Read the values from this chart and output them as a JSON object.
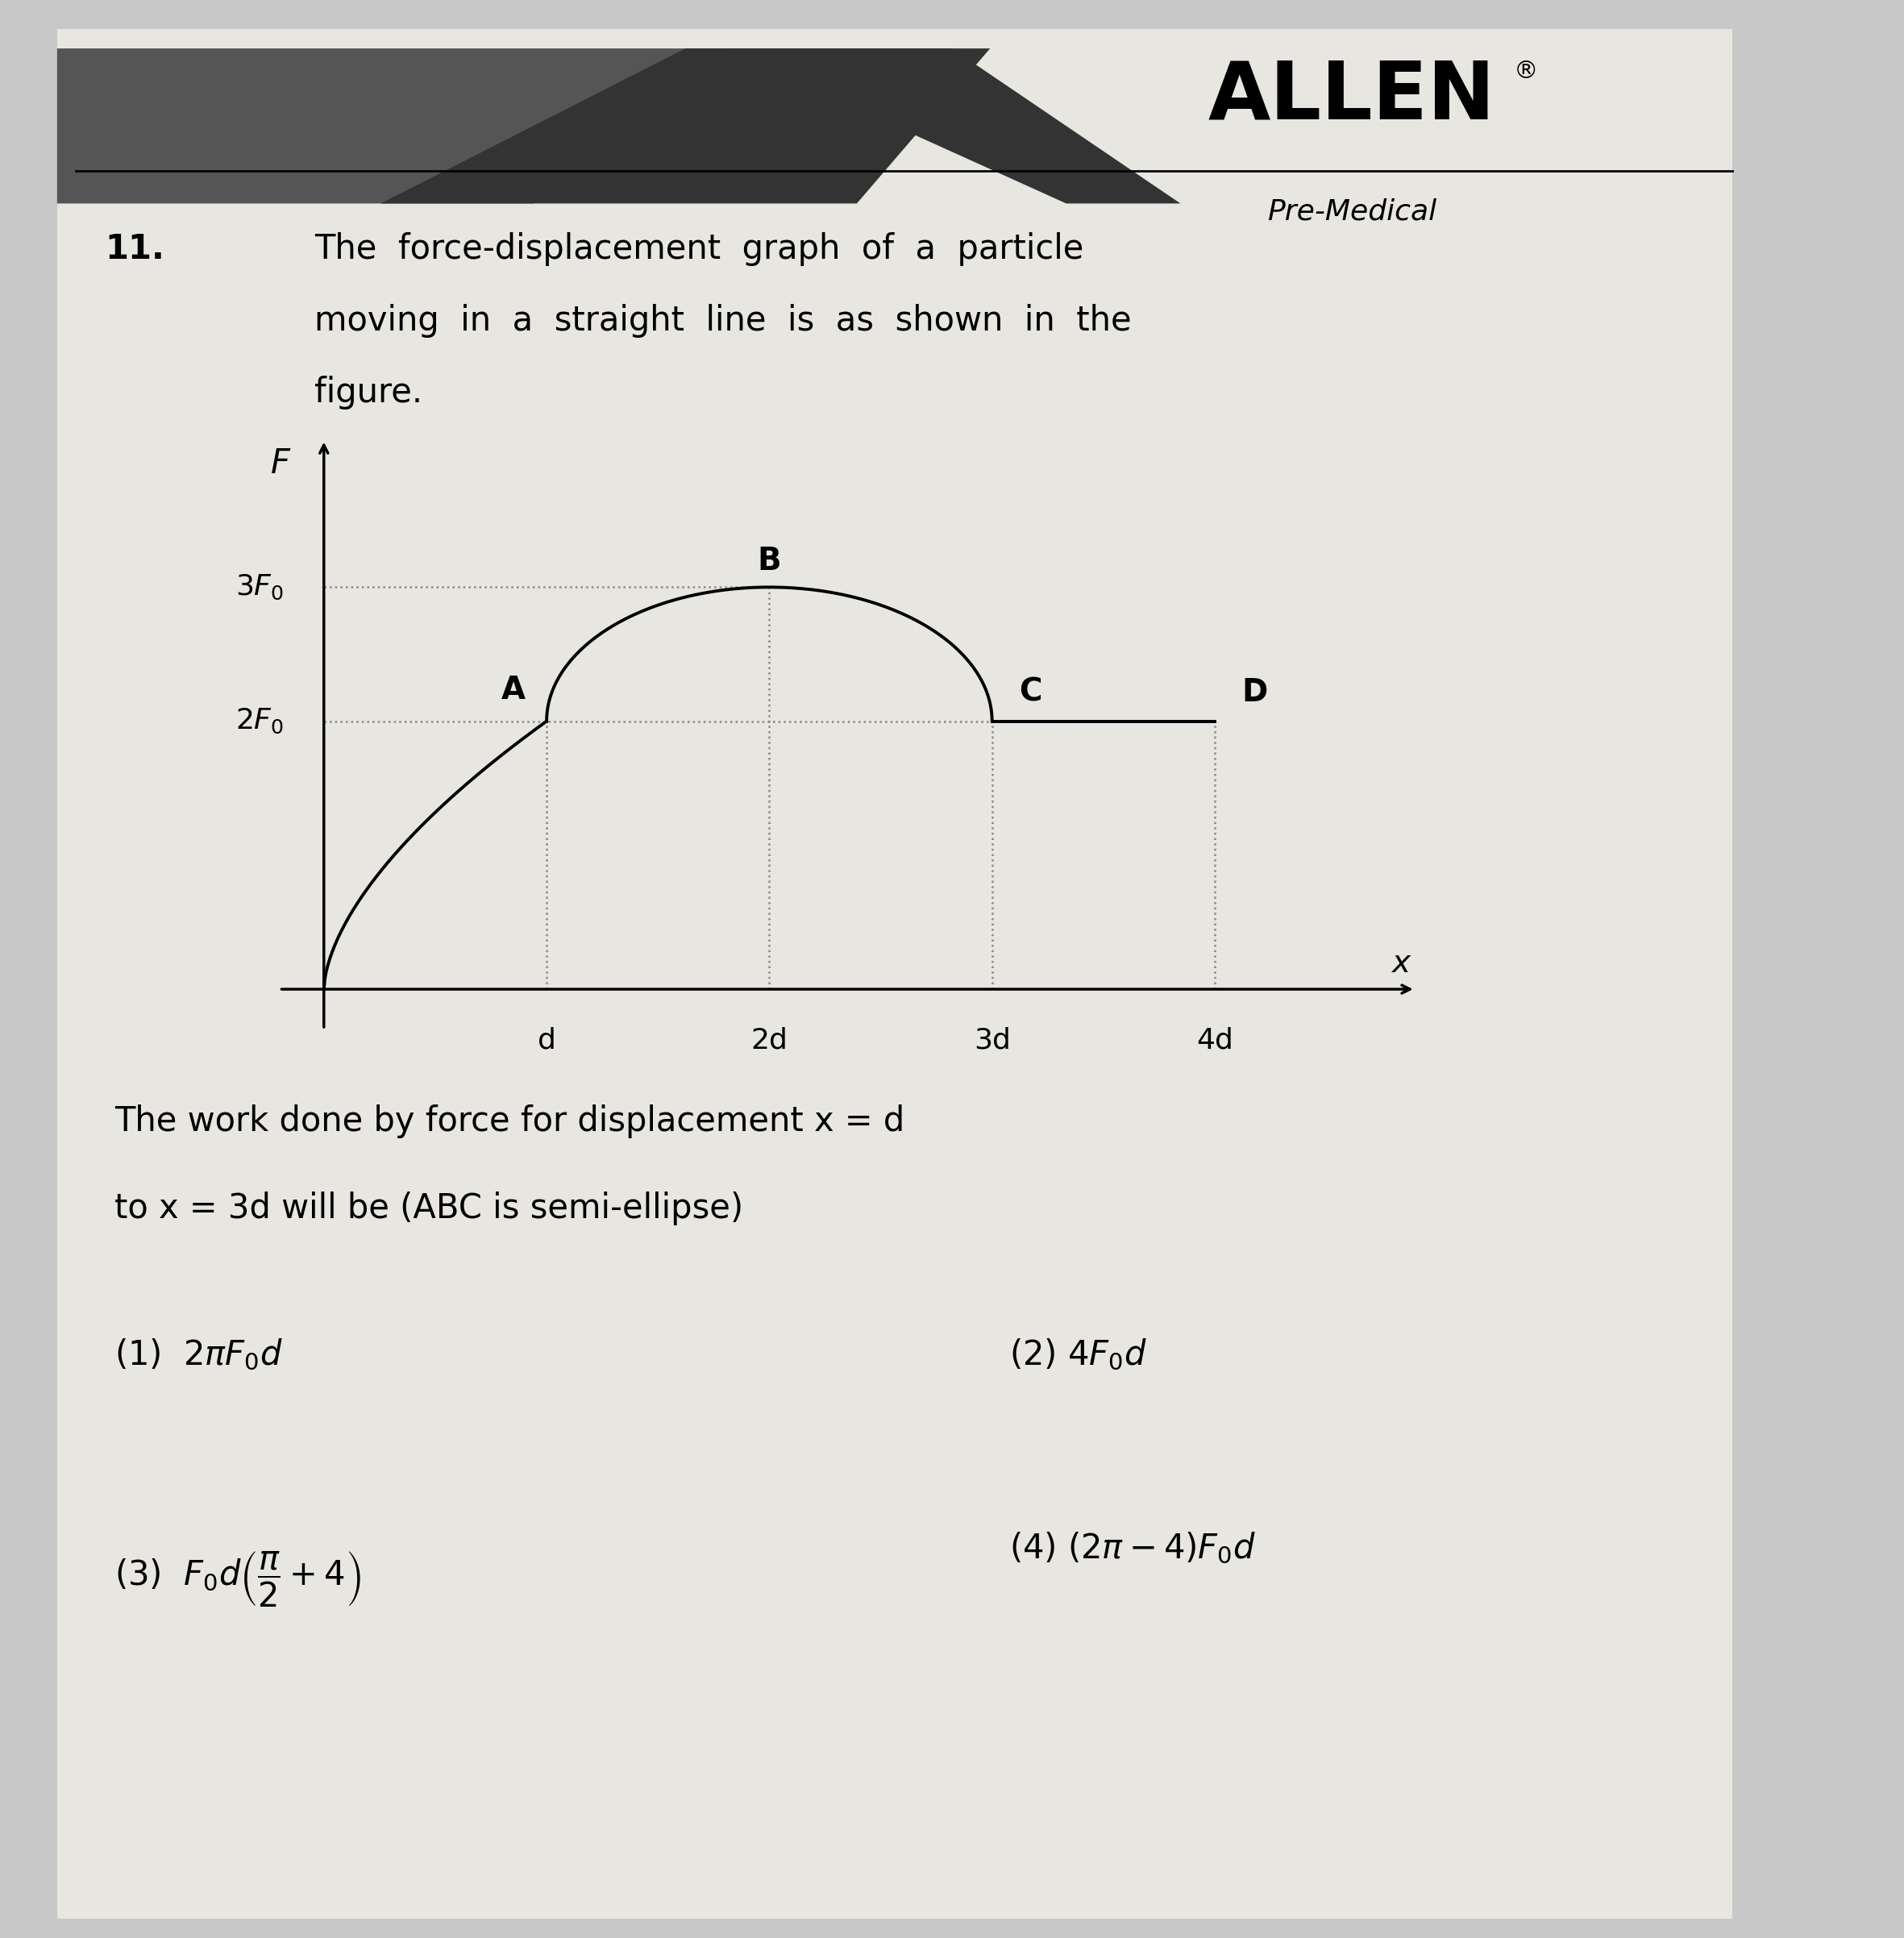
{
  "bg_outer": "#c8c8c8",
  "bg_paper": "#e8e6e0",
  "header_dark1": "#4a4a4a",
  "header_dark2": "#2a2a2a",
  "curve_color": "#000000",
  "dash_color": "#888888",
  "text_color": "#111111",
  "allen_text": "ALLEN",
  "premedical_text": "Pre-Medical",
  "q_num": "11.",
  "q_line1": "The  force-displacement  graph  of  a  particle",
  "q_line2": "moving  in  a  straight  line  is  as  shown  in  the",
  "q_line3": "figure.",
  "body1": "The work done by force for displacement x = d",
  "body2": "to x = 3d will be (ABC is semi-ellipse)",
  "opt1_left": "(1)  $2\\pi F_0d$",
  "opt2_right": "(2) $4F_0d$",
  "opt3_left": "(3)  $F_0d\\left(\\dfrac{\\pi}{2}+4\\right)$",
  "opt4_right": "(4) $(2\\pi - 4)F_0d$",
  "graph_xlim": [
    -0.3,
    5.0
  ],
  "graph_ylim": [
    -0.5,
    4.2
  ],
  "x_tick_vals": [
    1,
    2,
    3,
    4
  ],
  "x_tick_labels": [
    "d",
    "2d",
    "3d",
    "4d"
  ],
  "y_tick_vals": [
    2,
    3
  ],
  "y_tick_labels": [
    "$2F_0$",
    "$3F_0$"
  ]
}
